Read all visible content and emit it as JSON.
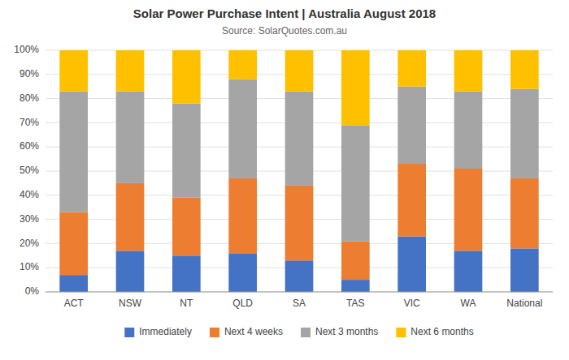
{
  "chart_data": {
    "type": "bar",
    "stacked": true,
    "title": "Solar Power Purchase Intent | Australia August 2018",
    "subtitle": "Source: SolarQuotes.com.au",
    "categories": [
      "ACT",
      "NSW",
      "NT",
      "QLD",
      "SA",
      "TAS",
      "VIC",
      "WA",
      "National"
    ],
    "series": [
      {
        "name": "Immediately",
        "color": "#4472C4",
        "values": [
          7,
          17,
          15,
          16,
          13,
          5,
          23,
          17,
          18
        ]
      },
      {
        "name": "Next 4 weeks",
        "color": "#ED7D31",
        "values": [
          26,
          28,
          24,
          31,
          31,
          16,
          30,
          34,
          29
        ]
      },
      {
        "name": "Next 3 months",
        "color": "#A5A5A5",
        "values": [
          50,
          38,
          39,
          41,
          39,
          48,
          32,
          32,
          37
        ]
      },
      {
        "name": "Next 6 months",
        "color": "#FFC000",
        "values": [
          17,
          17,
          22,
          12,
          17,
          31,
          15,
          17,
          16
        ]
      }
    ],
    "ylim": [
      0,
      100
    ],
    "yticks": [
      {
        "value": 0,
        "label": "0%"
      },
      {
        "value": 10,
        "label": "10%"
      },
      {
        "value": 20,
        "label": "20%"
      },
      {
        "value": 30,
        "label": "30%"
      },
      {
        "value": 40,
        "label": "40%"
      },
      {
        "value": 50,
        "label": "50%"
      },
      {
        "value": 60,
        "label": "60%"
      },
      {
        "value": 70,
        "label": "70%"
      },
      {
        "value": 80,
        "label": "80%"
      },
      {
        "value": 90,
        "label": "90%"
      },
      {
        "value": 100,
        "label": "100%"
      }
    ],
    "grid": true,
    "legend": "bottom"
  }
}
